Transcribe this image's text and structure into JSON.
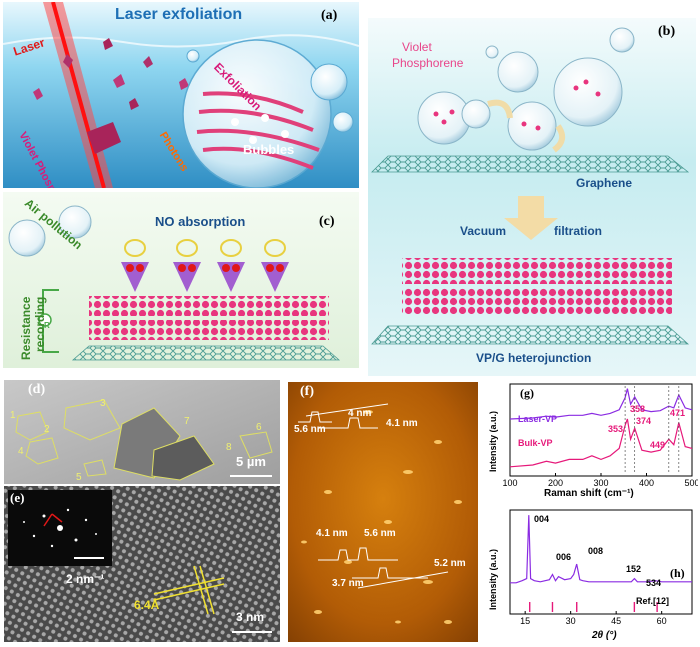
{
  "panel_a": {
    "label": "(a)",
    "title": "Laser exfoliation",
    "laser": "Laser",
    "violet_phosphorus": "Violet Phosphorus",
    "photons": "Photons",
    "exfoliation": "Exfoliation",
    "bubbles": "Bubbles"
  },
  "panel_b": {
    "label": "(b)",
    "violet": "Violet",
    "phosphorene": "Phosphorene",
    "graphene": "Graphene",
    "vacuum": "Vacuum",
    "filtration": "filtration",
    "heterojunction": "VP/G heterojunction"
  },
  "panel_c": {
    "label": "(c)",
    "air_pollution": "Air pollution",
    "no_absorption": "NO absorption",
    "resistance": "Resistance",
    "recording": "recording",
    "r_symbol": "R"
  },
  "panel_d": {
    "label": "(d)",
    "flakes": [
      "1",
      "2",
      "3",
      "4",
      "5",
      "6",
      "7",
      "8"
    ],
    "scale": "5 µm"
  },
  "panel_e": {
    "label": "(e)",
    "inset_scale": "2 nm⁻¹",
    "lattice": "6.4Å",
    "scale": "3 nm"
  },
  "panel_f": {
    "label": "(f)",
    "heights": [
      "5.6 nm",
      "4 nm",
      "4.1 nm",
      "4.1 nm",
      "5.6 nm",
      "5.2 nm",
      "3.7 nm"
    ]
  },
  "panel_g": {
    "label": "(g)",
    "series_top": "Laser-VP",
    "series_bottom": "Bulk-VP",
    "peaks": [
      "358",
      "374",
      "353",
      "449",
      "471"
    ]
  },
  "panel_h": {
    "label": "(h)",
    "peaks": [
      "004",
      "006",
      "008",
      "152",
      "534"
    ],
    "ref": "Ref.[12]"
  },
  "chart_data": [
    {
      "type": "line",
      "panel": "g",
      "xlabel": "Raman shift (cm⁻¹)",
      "ylabel": "Intensity (a.u.)",
      "xlim": [
        100,
        500
      ],
      "xticks": [
        100,
        200,
        300,
        400,
        500
      ],
      "series": [
        {
          "name": "Laser-VP",
          "color": "#8a2be2",
          "x": [
            100,
            150,
            180,
            200,
            230,
            260,
            280,
            300,
            320,
            340,
            353,
            358,
            365,
            374,
            390,
            410,
            430,
            449,
            460,
            471,
            485,
            500
          ],
          "y": [
            0.62,
            0.63,
            0.65,
            0.64,
            0.66,
            0.66,
            0.68,
            0.66,
            0.68,
            0.72,
            0.85,
            0.95,
            0.78,
            0.86,
            0.72,
            0.7,
            0.71,
            0.76,
            0.74,
            0.88,
            0.74,
            0.72
          ]
        },
        {
          "name": "Bulk-VP",
          "color": "#e6197a",
          "x": [
            100,
            150,
            180,
            200,
            230,
            260,
            280,
            300,
            320,
            340,
            353,
            358,
            365,
            374,
            390,
            410,
            430,
            449,
            460,
            471,
            485,
            500
          ],
          "y": [
            0.1,
            0.12,
            0.16,
            0.14,
            0.18,
            0.18,
            0.22,
            0.18,
            0.22,
            0.3,
            0.55,
            0.62,
            0.4,
            0.52,
            0.28,
            0.26,
            0.28,
            0.4,
            0.34,
            0.58,
            0.32,
            0.3
          ]
        }
      ],
      "annotations": [
        "353",
        "358",
        "374",
        "449",
        "471"
      ]
    },
    {
      "type": "line",
      "panel": "h",
      "xlabel": "2θ (°)",
      "ylabel": "Intensity (a.u.)",
      "xlim": [
        10,
        70
      ],
      "xticks": [
        15,
        30,
        45,
        60
      ],
      "series": [
        {
          "name": "",
          "color": "#8a2be2",
          "x": [
            10,
            12,
            14,
            15.5,
            16.2,
            16.8,
            18,
            20,
            23,
            24,
            25,
            26,
            28,
            30,
            31,
            32,
            33,
            34,
            36,
            40,
            45,
            50,
            51,
            52,
            55,
            58,
            60,
            65,
            70
          ],
          "y": [
            0.3,
            0.3,
            0.32,
            0.34,
            0.95,
            0.34,
            0.32,
            0.31,
            0.33,
            0.38,
            0.32,
            0.36,
            0.33,
            0.34,
            0.38,
            0.48,
            0.33,
            0.32,
            0.31,
            0.31,
            0.31,
            0.31,
            0.34,
            0.31,
            0.31,
            0.32,
            0.31,
            0.31,
            0.31
          ]
        }
      ],
      "reference_ticks": [
        16.5,
        24,
        32,
        51,
        58.5
      ],
      "annotations": [
        "004",
        "006",
        "008",
        "152",
        "534"
      ]
    }
  ]
}
